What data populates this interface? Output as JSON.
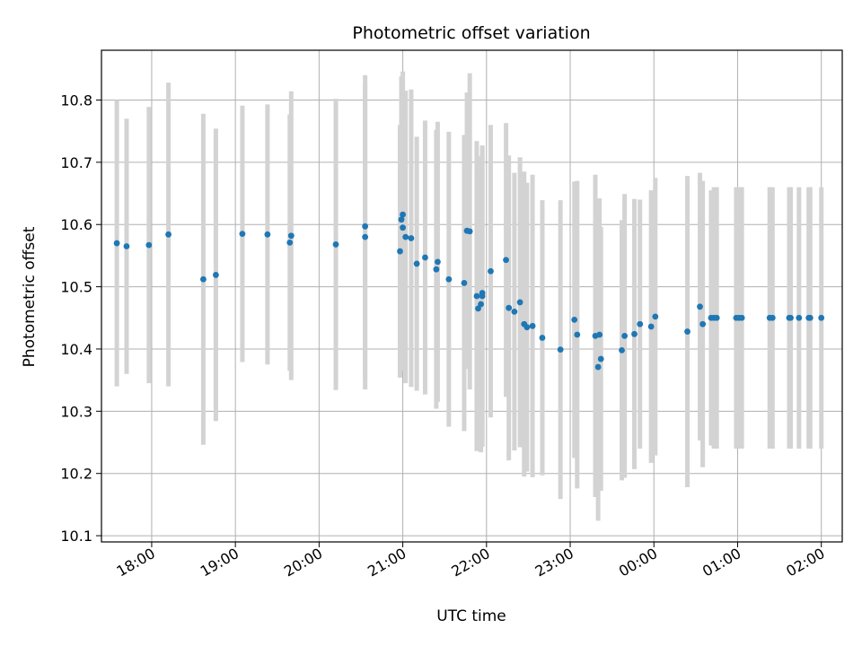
{
  "chart_data": {
    "type": "scatter",
    "title": "Photometric offset variation",
    "xlabel": "UTC time",
    "ylabel": "Photometric offset",
    "xlim": [
      "17:24",
      "02:15"
    ],
    "ylim": [
      10.09,
      10.88
    ],
    "x_ticks": [
      "18:00",
      "19:00",
      "20:00",
      "21:00",
      "22:00",
      "23:00",
      "00:00",
      "01:00",
      "02:00"
    ],
    "y_ticks": [
      "10.1",
      "10.2",
      "10.3",
      "10.4",
      "10.5",
      "10.6",
      "10.7",
      "10.8"
    ],
    "grid": true,
    "colors": {
      "point": "#1f77b4",
      "errorbar": "#d3d3d3",
      "grid": "#b0b0b0"
    },
    "series": [
      {
        "x": [
          "17:35",
          "17:42",
          "17:58",
          "18:12",
          "18:37",
          "18:46",
          "19:05",
          "19:23",
          "19:39",
          "19:40",
          "20:12",
          "20:33",
          "20:33",
          "20:58",
          "20:59",
          "21:00",
          "21:00",
          "21:02",
          "21:06",
          "21:10",
          "21:16",
          "21:24",
          "21:25",
          "21:33",
          "21:44",
          "21:46",
          "21:48",
          "21:53",
          "21:54",
          "21:56",
          "21:57",
          "21:57",
          "22:03",
          "22:14",
          "22:16",
          "22:20",
          "22:24",
          "22:27",
          "22:29",
          "22:33",
          "22:40",
          "22:53",
          "23:03",
          "23:05",
          "23:18",
          "23:20",
          "23:21",
          "23:22",
          "23:37",
          "23:39",
          "23:46",
          "23:50",
          "23:58",
          "24:01",
          "24:24",
          "24:33",
          "24:35",
          "24:41",
          "24:43",
          "24:45",
          "24:59",
          "25:01",
          "25:03",
          "25:23",
          "25:25",
          "25:37",
          "25:38",
          "25:44",
          "25:51",
          "25:52",
          "26:00"
        ],
        "y": [
          10.57,
          10.565,
          10.567,
          10.584,
          10.512,
          10.519,
          10.585,
          10.584,
          10.571,
          10.582,
          10.568,
          10.597,
          10.58,
          10.557,
          10.608,
          10.616,
          10.595,
          10.58,
          10.578,
          10.537,
          10.547,
          10.528,
          10.54,
          10.512,
          10.506,
          10.59,
          10.589,
          10.485,
          10.465,
          10.472,
          10.485,
          10.49,
          10.525,
          10.543,
          10.466,
          10.46,
          10.475,
          10.44,
          10.435,
          10.437,
          10.418,
          10.399,
          10.447,
          10.423,
          10.421,
          10.371,
          10.423,
          10.384,
          10.398,
          10.421,
          10.424,
          10.44,
          10.436,
          10.452,
          10.428,
          10.468,
          10.44,
          10.45,
          10.45,
          10.45,
          10.45,
          10.45,
          10.45,
          10.45,
          10.45,
          10.45,
          10.45,
          10.45,
          10.45,
          10.45,
          10.45
        ],
        "err": [
          0.23,
          0.205,
          0.222,
          0.244,
          0.266,
          0.235,
          0.206,
          0.209,
          0.206,
          0.232,
          0.234,
          0.243,
          0.245,
          0.203,
          0.23,
          0.23,
          0.23,
          0.235,
          0.239,
          0.204,
          0.22,
          0.224,
          0.225,
          0.237,
          0.238,
          0.222,
          0.254,
          0.249,
          0.215,
          0.238,
          0.242,
          0.235,
          0.235,
          0.22,
          0.245,
          0.223,
          0.233,
          0.245,
          0.232,
          0.243,
          0.221,
          0.24,
          0.222,
          0.247,
          0.259,
          0.247,
          0.219,
          0.212,
          0.209,
          0.228,
          0.217,
          0.2,
          0.219,
          0.223,
          0.25,
          0.215,
          0.23,
          0.205,
          0.21,
          0.21,
          0.21,
          0.21,
          0.21,
          0.21,
          0.21,
          0.21,
          0.21,
          0.21,
          0.21,
          0.21,
          0.21
        ]
      }
    ]
  }
}
